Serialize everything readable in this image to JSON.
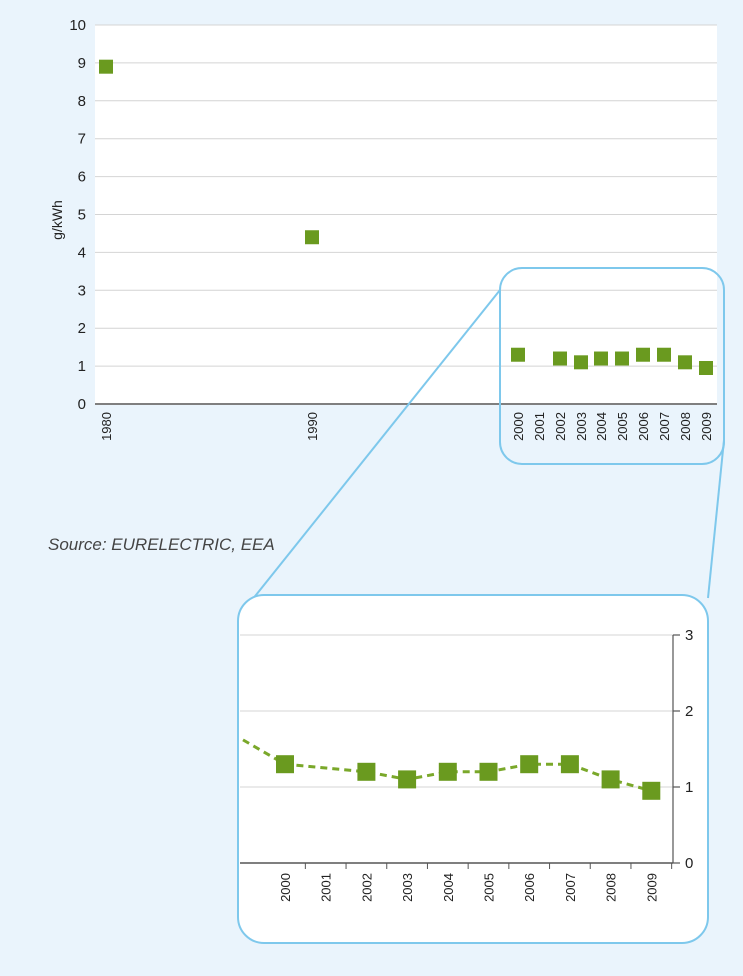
{
  "source_text": "Source: EURELECTRIC, EEA",
  "colors": {
    "background": "#eaf4fc",
    "plot_background": "#ffffff",
    "marker": "#6a9a1f",
    "callout": "#7ec8ec",
    "grid": "#d4d4d4",
    "axis": "#555555"
  },
  "chart_data": [
    {
      "type": "scatter",
      "title": "",
      "ylabel": "g/kWh",
      "xlabel": "",
      "ylim": [
        0,
        10
      ],
      "yticks": [
        0,
        1,
        2,
        3,
        4,
        5,
        6,
        7,
        8,
        9,
        10
      ],
      "grid": true,
      "x": [
        "1980",
        "1990",
        "2000",
        "2001",
        "2002",
        "2003",
        "2004",
        "2005",
        "2006",
        "2007",
        "2008",
        "2009"
      ],
      "values": [
        8.9,
        4.4,
        1.3,
        null,
        1.2,
        1.1,
        1.2,
        1.2,
        1.3,
        1.3,
        1.1,
        0.95
      ]
    },
    {
      "type": "line",
      "title": "",
      "ylabel": "",
      "ylim": [
        0,
        3
      ],
      "yticks": [
        0,
        1,
        2,
        3
      ],
      "grid": true,
      "line_style": "dashed",
      "x": [
        "2000",
        "2001",
        "2002",
        "2003",
        "2004",
        "2005",
        "2006",
        "2007",
        "2008",
        "2009"
      ],
      "values": [
        1.3,
        null,
        1.2,
        1.1,
        1.2,
        1.2,
        1.3,
        1.3,
        1.1,
        0.95
      ]
    }
  ]
}
